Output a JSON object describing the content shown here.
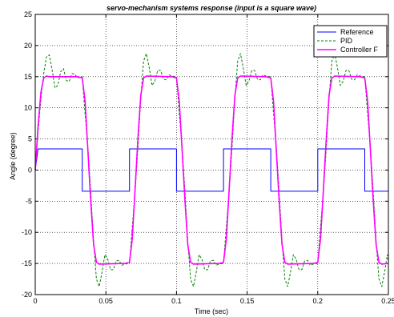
{
  "chart_data": {
    "type": "line",
    "title": "servo-mechanism systems response (input is a square wave)",
    "xlabel": "Time (sec)",
    "ylabel": "Angle (degree)",
    "xlim": [
      0,
      0.25
    ],
    "ylim": [
      -20,
      25
    ],
    "xticks": [
      0,
      0.05,
      0.1,
      0.15,
      0.2,
      0.25
    ],
    "xtick_labels": [
      "0",
      "0.05",
      "0.1",
      "0.15",
      "0.2",
      "0.25"
    ],
    "yticks": [
      -20,
      -15,
      -10,
      -5,
      0,
      5,
      10,
      15,
      20,
      25
    ],
    "ytick_labels": [
      "-20",
      "-15",
      "-10",
      "-5",
      "0",
      "5",
      "10",
      "15",
      "20",
      "25"
    ],
    "grid": true,
    "legend_position": "top-right",
    "series": [
      {
        "name": "Reference",
        "color": "#0000ff",
        "dash": "solid",
        "x": [
          0,
          0.002,
          0.0333,
          0.0333,
          0.0667,
          0.0667,
          0.1,
          0.1,
          0.1333,
          0.1333,
          0.1667,
          0.1667,
          0.2,
          0.2,
          0.2333,
          0.2333,
          0.25
        ],
        "y": [
          0,
          3.4,
          3.4,
          -3.4,
          -3.4,
          3.4,
          3.4,
          -3.4,
          -3.4,
          3.4,
          3.4,
          -3.4,
          -3.4,
          3.4,
          3.4,
          -3.4,
          -3.4
        ]
      },
      {
        "name": "PID",
        "color": "#008000",
        "dash": "dashed",
        "x": [
          0,
          0.002,
          0.004,
          0.006,
          0.008,
          0.01,
          0.012,
          0.014,
          0.016,
          0.018,
          0.02,
          0.022,
          0.024,
          0.026,
          0.028,
          0.03,
          0.0333,
          0.0353,
          0.0373,
          0.0393,
          0.0413,
          0.0433,
          0.0453,
          0.0473,
          0.0493,
          0.0513,
          0.0533,
          0.0553,
          0.0573,
          0.0593,
          0.0613,
          0.0633,
          0.0667,
          0.0687,
          0.0707,
          0.0727,
          0.0747,
          0.0767,
          0.0787,
          0.0807,
          0.0827,
          0.0847,
          0.0867,
          0.0887,
          0.0907,
          0.0927,
          0.0947,
          0.0967,
          0.1,
          0.102,
          0.104,
          0.106,
          0.108,
          0.11,
          0.112,
          0.114,
          0.116,
          0.118,
          0.12,
          0.122,
          0.124,
          0.126,
          0.128,
          0.13,
          0.1333,
          0.1353,
          0.1373,
          0.1393,
          0.1413,
          0.1433,
          0.1453,
          0.1473,
          0.1493,
          0.1513,
          0.1533,
          0.1553,
          0.1573,
          0.1593,
          0.1613,
          0.1633,
          0.1667,
          0.1687,
          0.1707,
          0.1727,
          0.1747,
          0.1767,
          0.1787,
          0.1807,
          0.1827,
          0.1847,
          0.1867,
          0.1887,
          0.1907,
          0.1927,
          0.1947,
          0.1967,
          0.2,
          0.202,
          0.204,
          0.206,
          0.208,
          0.21,
          0.212,
          0.214,
          0.216,
          0.218,
          0.22,
          0.222,
          0.224,
          0.226,
          0.228,
          0.23,
          0.2333,
          0.2353,
          0.2373,
          0.2393,
          0.2413,
          0.2433,
          0.2453,
          0.2473,
          0.2493,
          0.25
        ],
        "y": [
          0,
          6,
          11.5,
          15.5,
          18.2,
          18.5,
          16,
          13.2,
          13.6,
          15.8,
          16.3,
          14.4,
          14.2,
          15.5,
          15.4,
          14.8,
          15,
          9,
          3.5,
          -3.5,
          -11.5,
          -17.5,
          -18.7,
          -16.4,
          -13.6,
          -14.3,
          -16,
          -16,
          -14.6,
          -14.5,
          -15.3,
          -15.1,
          -15,
          -9,
          -3.5,
          3.5,
          11.5,
          17.5,
          18.7,
          16.4,
          13.6,
          14.3,
          16,
          16,
          14.6,
          14.5,
          15.3,
          15.1,
          15,
          9,
          3.5,
          -3.5,
          -11.5,
          -17.5,
          -18.7,
          -16.4,
          -13.6,
          -14.3,
          -16,
          -16,
          -14.6,
          -14.5,
          -15.3,
          -15.1,
          -15,
          -9,
          -3.5,
          3.5,
          11.5,
          17.5,
          18.7,
          16.4,
          13.6,
          14.3,
          16,
          16,
          14.6,
          14.5,
          15.3,
          15.1,
          15,
          9,
          3.5,
          -3.5,
          -11.5,
          -17.5,
          -18.7,
          -16.4,
          -13.6,
          -14.3,
          -16,
          -16,
          -14.6,
          -14.5,
          -15.3,
          -15.1,
          -15,
          -9,
          -3.5,
          3.5,
          11.5,
          17.5,
          18.7,
          16.4,
          13.6,
          14.3,
          16,
          16,
          14.6,
          14.5,
          15.3,
          15.1,
          15,
          9,
          3.5,
          -3.5,
          -11.5,
          -17.5,
          -18.7,
          -16.4,
          -13.6,
          -14.6
        ]
      },
      {
        "name": "Controller F",
        "color": "#ff00ff",
        "dash": "solid",
        "x": [
          0,
          0.002,
          0.004,
          0.006,
          0.008,
          0.01,
          0.03,
          0.0333,
          0.0353,
          0.0373,
          0.0393,
          0.0413,
          0.0433,
          0.0453,
          0.0633,
          0.0667,
          0.0687,
          0.0707,
          0.0727,
          0.0747,
          0.0767,
          0.0787,
          0.0967,
          0.1,
          0.102,
          0.104,
          0.106,
          0.108,
          0.11,
          0.112,
          0.13,
          0.1333,
          0.1353,
          0.1373,
          0.1393,
          0.1413,
          0.1433,
          0.1453,
          0.1633,
          0.1667,
          0.1687,
          0.1707,
          0.1727,
          0.1747,
          0.1767,
          0.1787,
          0.1967,
          0.2,
          0.202,
          0.204,
          0.206,
          0.208,
          0.21,
          0.212,
          0.23,
          0.2333,
          0.2353,
          0.2373,
          0.2393,
          0.2413,
          0.2433,
          0.2453,
          0.25
        ],
        "y": [
          0,
          7,
          12.5,
          14.8,
          15.1,
          15,
          15,
          14.8,
          11,
          3,
          -5,
          -12,
          -14.8,
          -15.1,
          -15,
          -14.8,
          -11,
          -3,
          5,
          12,
          14.8,
          15.1,
          15,
          14.8,
          11,
          3,
          -5,
          -12,
          -14.8,
          -15.1,
          -15,
          -14.8,
          -11,
          -3,
          5,
          12,
          14.8,
          15.1,
          15,
          14.8,
          11,
          3,
          -5,
          -12,
          -14.8,
          -15.1,
          -15,
          -14.8,
          -11,
          -3,
          5,
          12,
          14.8,
          15.1,
          15,
          14.8,
          11,
          3,
          -5,
          -12,
          -14.8,
          -15.1,
          -15
        ]
      }
    ]
  }
}
